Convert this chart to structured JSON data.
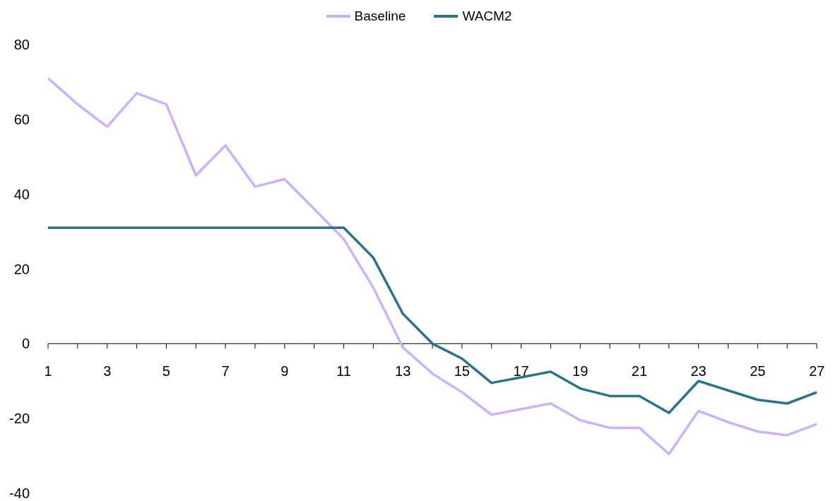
{
  "chart_data": {
    "type": "line",
    "x": [
      1,
      2,
      3,
      4,
      5,
      6,
      7,
      8,
      9,
      10,
      11,
      12,
      13,
      14,
      15,
      16,
      17,
      18,
      19,
      20,
      21,
      22,
      23,
      24,
      25,
      26,
      27
    ],
    "series": [
      {
        "name": "Baseline",
        "color": "#cdb1fa",
        "values": [
          71,
          64,
          58,
          67,
          64,
          45,
          53,
          42,
          44,
          36,
          28,
          15,
          -1,
          -8,
          -13,
          -19,
          -17.5,
          -16,
          -20.5,
          -22.5,
          -22.5,
          -29.5,
          -18,
          -21,
          -23.5,
          -24.5,
          -21.5
        ]
      },
      {
        "name": "WACM2",
        "color": "#2b738a",
        "values": [
          31,
          31,
          31,
          31,
          31,
          31,
          31,
          31,
          31,
          31,
          31,
          23,
          8,
          0,
          -4,
          -10.5,
          -9,
          -7.5,
          -12,
          -14,
          -14,
          -18.5,
          -10,
          -12.5,
          -15,
          -16,
          -13
        ]
      }
    ],
    "xlim": [
      1,
      27
    ],
    "xticks": [
      1,
      {
        "value": 2,
        "label": null
      },
      3,
      {
        "value": 4,
        "label": null
      },
      5,
      {
        "value": 6,
        "label": null
      },
      7,
      {
        "value": 8,
        "label": null
      },
      9,
      {
        "value": 10,
        "label": null
      },
      11,
      {
        "value": 12,
        "label": null
      },
      13,
      {
        "value": 14,
        "label": null
      },
      15,
      {
        "value": 16,
        "label": null
      },
      17,
      {
        "value": 18,
        "label": null
      },
      19,
      {
        "value": 20,
        "label": null
      },
      21,
      {
        "value": 22,
        "label": null
      },
      23,
      {
        "value": 24,
        "label": null
      },
      25,
      {
        "value": 26,
        "label": null
      },
      27
    ],
    "ylim": [
      -40,
      80
    ],
    "yticks": [
      -40,
      -20,
      0,
      20,
      40,
      60,
      80
    ],
    "grid": false,
    "legend": "top",
    "marker": "none",
    "line_style": "solid"
  }
}
